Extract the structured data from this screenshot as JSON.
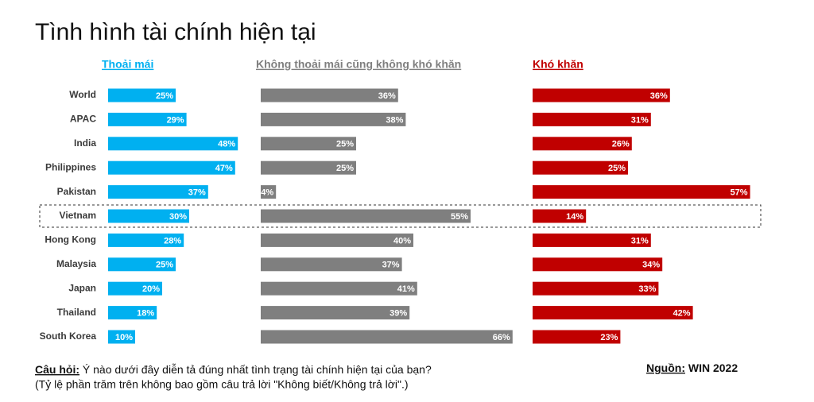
{
  "chart_data": {
    "type": "bar",
    "title": "Tình hình tài chính hiện tại",
    "categories": [
      "World",
      "APAC",
      "India",
      "Philippines",
      "Pakistan",
      "Vietnam",
      "Hong Kong",
      "Malaysia",
      "Japan",
      "Thailand",
      "South Korea"
    ],
    "highlight": "Vietnam",
    "xlim": [
      0,
      100
    ],
    "series": [
      {
        "name": "Thoải mái",
        "color": "#00b0f0",
        "values": [
          25,
          29,
          48,
          47,
          37,
          30,
          28,
          25,
          20,
          18,
          10
        ],
        "value_labels": [
          "25%",
          "29%",
          "48%",
          "47%",
          "37%",
          "30%",
          "28%",
          "25%",
          "20%",
          "18%",
          "10%"
        ]
      },
      {
        "name": "Không thoải mái cũng không khó khăn",
        "color": "#7f7f7f",
        "values": [
          36,
          38,
          25,
          25,
          4,
          55,
          40,
          37,
          41,
          39,
          66
        ],
        "value_labels": [
          "36%",
          "38%",
          "25%",
          "25%",
          "4%",
          "55%",
          "40%",
          "37%",
          "41%",
          "39%",
          "66%"
        ]
      },
      {
        "name": "Khó khăn",
        "color": "#c00000",
        "values": [
          36,
          31,
          26,
          25,
          57,
          14,
          31,
          34,
          33,
          42,
          23
        ],
        "value_labels": [
          "36%",
          "31%",
          "26%",
          "25%",
          "57%",
          "14%",
          "31%",
          "34%",
          "33%",
          "42%",
          "23%"
        ]
      }
    ]
  },
  "notes": {
    "question_label": "Câu hỏi:",
    "question": " Ý nào dưới đây diễn tả đúng nhất tình trạng tài chính hiện tại của bạn?",
    "note": "(Tỷ lệ phần trăm trên không bao gồm câu trả lời \"Không biết/Không trả lời\".)",
    "source_label": "Nguồn:",
    "source": " WIN 2022"
  }
}
